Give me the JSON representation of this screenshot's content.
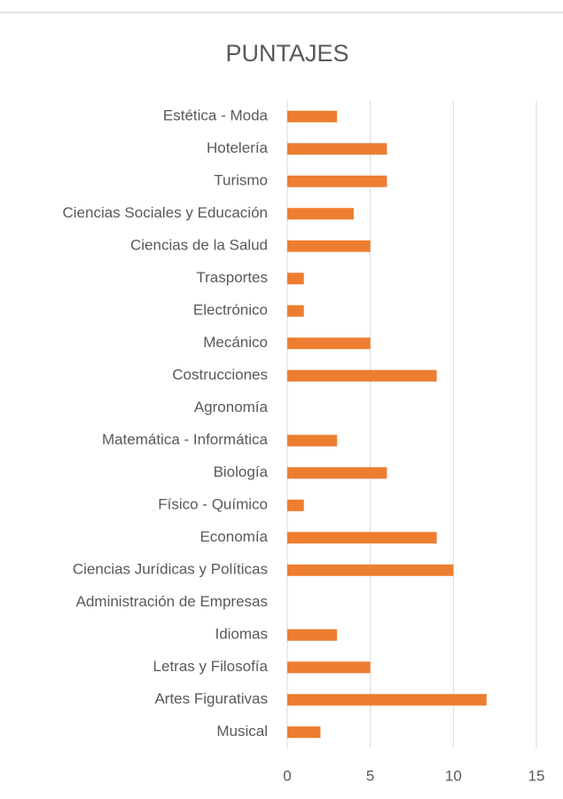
{
  "chart_data": {
    "type": "barh",
    "title": "PUNTAJES",
    "categories": [
      "Estética - Moda",
      "Hotelería",
      "Turismo",
      "Ciencias Sociales y Educación",
      "Ciencias de la Salud",
      "Trasportes",
      "Electrónico",
      "Mecánico",
      "Costrucciones",
      "Agronomía",
      "Matemática - Informática",
      "Biología",
      "Físico - Químico",
      "Economía",
      "Ciencias Jurídicas y Políticas",
      "Administración de Empresas",
      "Idiomas",
      "Letras y Filosofía",
      "Artes Figurativas",
      "Musical"
    ],
    "values": [
      3,
      6,
      6,
      4,
      5,
      1,
      1,
      5,
      9,
      0,
      3,
      6,
      1,
      9,
      10,
      0,
      3,
      5,
      12,
      2
    ],
    "color": "#ed7d31",
    "xlim": [
      0,
      15
    ],
    "xticks": [
      0,
      5,
      10,
      15
    ],
    "grid": true
  }
}
